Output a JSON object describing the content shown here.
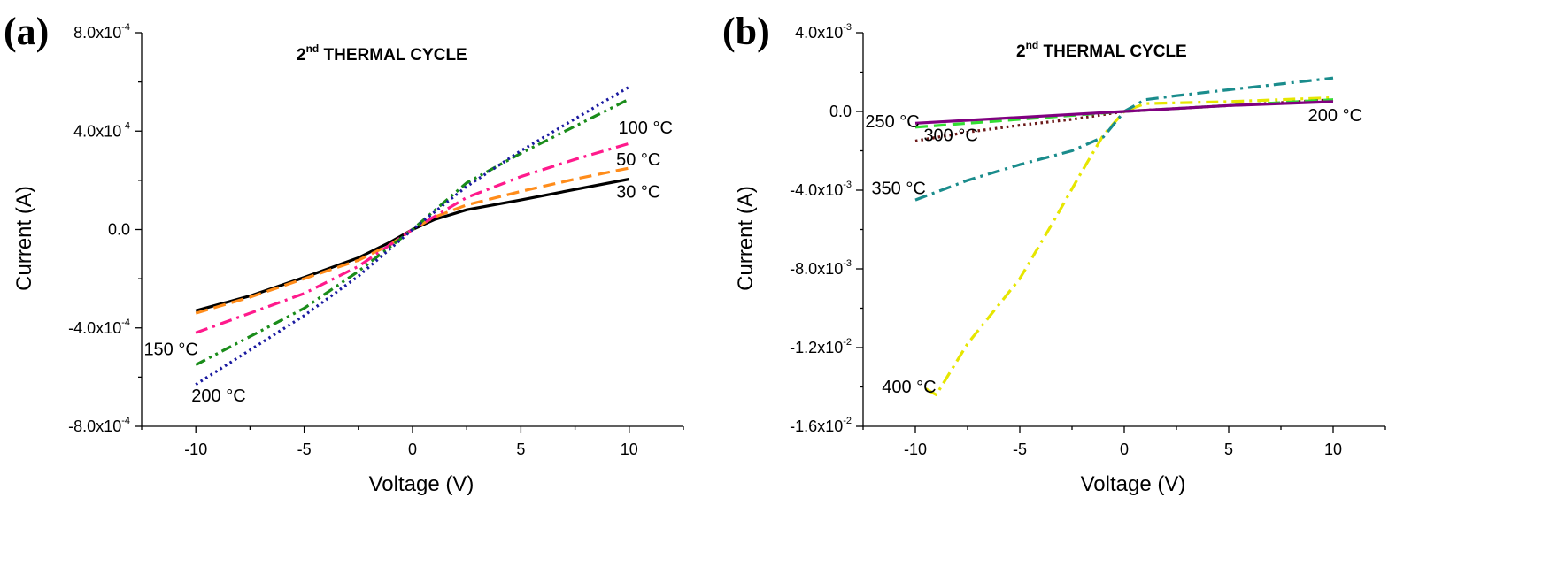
{
  "chart_data": [
    {
      "type": "line",
      "panel_label": "(a)",
      "title": "2nd THERMAL CYCLE",
      "title_main": "2",
      "title_sup": "nd",
      "title_rest": " THERMAL CYCLE",
      "xlabel": "Voltage (V)",
      "ylabel": "Current (A)",
      "xlim": [
        -12.5,
        12.5
      ],
      "ylim": [
        -0.0008,
        0.0008
      ],
      "xticks": [
        {
          "value": -10,
          "label": "-10"
        },
        {
          "value": -5,
          "label": "-5"
        },
        {
          "value": 0,
          "label": "0"
        },
        {
          "value": 5,
          "label": "5"
        },
        {
          "value": 10,
          "label": "10"
        }
      ],
      "yticks": [
        {
          "value": 0.0008,
          "mant": "8.0x10",
          "exp": "-4"
        },
        {
          "value": 0.0004,
          "mant": "4.0x10",
          "exp": "-4"
        },
        {
          "value": 0,
          "mant": "0.0",
          "exp": ""
        },
        {
          "value": -0.0004,
          "mant": "-4.0x10",
          "exp": "-4"
        },
        {
          "value": -0.0008,
          "mant": "-8.0x10",
          "exp": "-4"
        }
      ],
      "series": [
        {
          "name": "30 °C",
          "color": "#000000",
          "dash": "solid",
          "x": [
            -10,
            -7.5,
            -5,
            -2.5,
            -1,
            0,
            1,
            2.5,
            5,
            7.5,
            10
          ],
          "y": [
            -0.00033,
            -0.00027,
            -0.000195,
            -0.000115,
            -5e-05,
            0,
            4e-05,
            8e-05,
            0.00012,
            0.000163,
            0.000205
          ]
        },
        {
          "name": "50 °C",
          "color": "#ff8c1a",
          "dash": "dash",
          "x": [
            -10,
            -7.5,
            -5,
            -2.5,
            -1,
            0,
            1,
            2.5,
            5,
            7.5,
            10
          ],
          "y": [
            -0.00034,
            -0.000275,
            -0.0002,
            -0.000125,
            -6e-05,
            0,
            5e-05,
            0.0001,
            0.000155,
            0.000205,
            0.00025
          ]
        },
        {
          "name": "100 °C",
          "color": "#ff1a8c",
          "dash": "dashdot",
          "x": [
            -10,
            -5,
            -2.5,
            0,
            2.5,
            5,
            7.5,
            10
          ],
          "y": [
            -0.00042,
            -0.00026,
            -0.00015,
            0,
            0.00013,
            0.000215,
            0.000285,
            0.00035
          ]
        },
        {
          "name": "150 °C",
          "color": "#1a8c1a",
          "dash": "dashdotdot",
          "x": [
            -10,
            -5,
            -2.5,
            0,
            2.5,
            5,
            7.5,
            10
          ],
          "y": [
            -0.00055,
            -0.00032,
            -0.00017,
            0,
            0.00019,
            0.00031,
            0.00042,
            0.00053
          ]
        },
        {
          "name": "200 °C",
          "color": "#1a1aa0",
          "dash": "dot",
          "x": [
            -10,
            -5,
            -2.5,
            0,
            2.5,
            5,
            7.5,
            10
          ],
          "y": [
            -0.00063,
            -0.00035,
            -0.00019,
            0,
            0.000175,
            0.00032,
            0.00045,
            0.00058
          ]
        }
      ],
      "annotations": [
        {
          "text": "100 °C",
          "x": 9.5,
          "y": 0.00039
        },
        {
          "text": "50 °C",
          "x": 9.4,
          "y": 0.00026
        },
        {
          "text": "30 °C",
          "x": 9.4,
          "y": 0.00013
        },
        {
          "text": "150 °C",
          "x": -12.4,
          "y": -0.00051
        },
        {
          "text": "200 °C",
          "x": -10.2,
          "y": -0.0007
        }
      ]
    },
    {
      "type": "line",
      "panel_label": "(b)",
      "title": "2nd THERMAL CYCLE",
      "title_main": "2",
      "title_sup": "nd",
      "title_rest": " THERMAL CYCLE",
      "xlabel": "Voltage (V)",
      "ylabel": "Current (A)",
      "xlim": [
        -12.5,
        12.5
      ],
      "ylim": [
        -0.016,
        0.004
      ],
      "xticks": [
        {
          "value": -10,
          "label": "-10"
        },
        {
          "value": -5,
          "label": "-5"
        },
        {
          "value": 0,
          "label": "0"
        },
        {
          "value": 5,
          "label": "5"
        },
        {
          "value": 10,
          "label": "10"
        }
      ],
      "yticks": [
        {
          "value": 0.004,
          "mant": "4.0x10",
          "exp": "-3"
        },
        {
          "value": 0,
          "mant": "0.0",
          "exp": ""
        },
        {
          "value": -0.004,
          "mant": "-4.0x10",
          "exp": "-3"
        },
        {
          "value": -0.008,
          "mant": "-8.0x10",
          "exp": "-3"
        },
        {
          "value": -0.012,
          "mant": "-1.2x10",
          "exp": "-2"
        },
        {
          "value": -0.016,
          "mant": "-1.6x10",
          "exp": "-2"
        }
      ],
      "series": [
        {
          "name": "400 °C",
          "color": "#e6e600",
          "dash": "dashdot",
          "x": [
            -9.5,
            -9,
            -7.5,
            -5,
            -3.5,
            -2,
            -1,
            0,
            1,
            5,
            10
          ],
          "y": [
            -0.0141,
            -0.0144,
            -0.0118,
            -0.0085,
            -0.0058,
            -0.003,
            -0.0012,
            0,
            0.0004,
            0.0005,
            0.0007
          ]
        },
        {
          "name": "350 °C",
          "color": "#1a8c8c",
          "dash": "dashdot",
          "x": [
            -10,
            -7.5,
            -5,
            -2.5,
            -1,
            0,
            1,
            2.5,
            5,
            7.5,
            10
          ],
          "y": [
            -0.0045,
            -0.0035,
            -0.0027,
            -0.002,
            -0.0013,
            0,
            0.0006,
            0.0008,
            0.0011,
            0.0014,
            0.0017
          ]
        },
        {
          "name": "300 °C",
          "color": "#6b1a1a",
          "dash": "dot",
          "x": [
            -10,
            -7.5,
            -5,
            -2.5,
            0,
            5,
            10
          ],
          "y": [
            -0.0015,
            -0.00105,
            -0.0007,
            -0.0004,
            0,
            0.0003,
            0.0006
          ]
        },
        {
          "name": "250 °C",
          "color": "#33dd33",
          "dash": "dash",
          "x": [
            -10,
            -5,
            0,
            5,
            10
          ],
          "y": [
            -0.0008,
            -0.0004,
            0,
            0.0003,
            0.0006
          ]
        },
        {
          "name": "200 °C",
          "color": "#800080",
          "dash": "solid",
          "x": [
            -10,
            -5,
            0,
            5,
            10
          ],
          "y": [
            -0.0006,
            -0.0003,
            0,
            0.0003,
            0.0005
          ]
        }
      ],
      "annotations": [
        {
          "text": "250 °C",
          "x": -12.4,
          "y": -0.0008
        },
        {
          "text": "300 °C",
          "x": -9.6,
          "y": -0.0015
        },
        {
          "text": "200 °C",
          "x": 8.8,
          "y": -0.0005
        },
        {
          "text": "350 °C",
          "x": -12.1,
          "y": -0.0042
        },
        {
          "text": "400 °C",
          "x": -11.6,
          "y": -0.0143
        }
      ]
    }
  ]
}
